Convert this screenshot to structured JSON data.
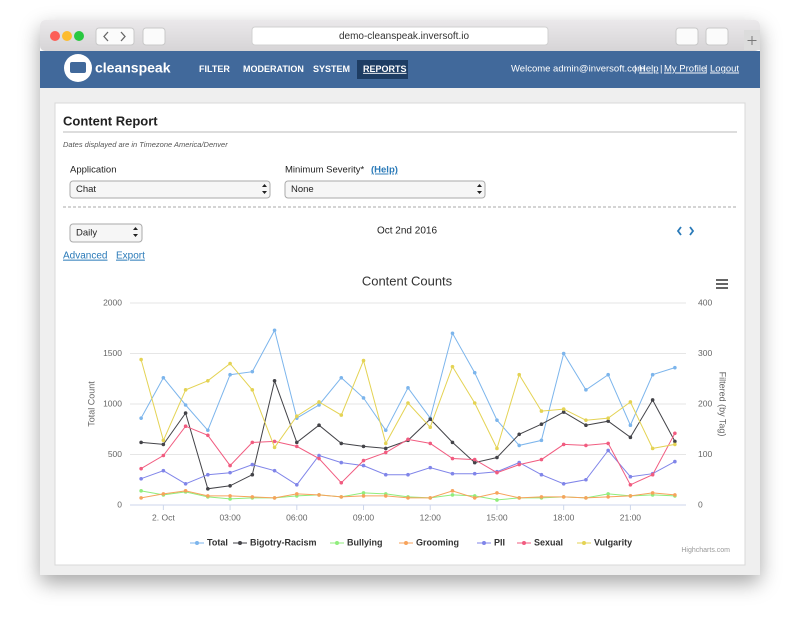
{
  "browser": {
    "url": "demo-cleanspeak.inversoft.io"
  },
  "nav": {
    "logo": "cleanspeak",
    "items": [
      "FILTER",
      "MODERATION",
      "SYSTEM",
      "REPORTS"
    ],
    "welcome": "Welcome admin@inversoft.com",
    "separator": "|",
    "links": [
      "Help",
      "My Profile",
      "Logout"
    ]
  },
  "page": {
    "title": "Content Report",
    "note": "Dates displayed are in Timezone America/Denver",
    "application_label": "Application",
    "application_value": "Chat",
    "severity_label": "Minimum Severity*",
    "severity_help": "(Help)",
    "severity_value": "None",
    "interval": "Daily",
    "date": "Oct 2nd 2016",
    "links": [
      "Advanced",
      "Export"
    ]
  },
  "chart_data": {
    "type": "line",
    "title": "Content Counts",
    "y_label": "Total Count",
    "y2_label": "Filtered (by Tag)",
    "credit": "Highcharts.com",
    "grid": true,
    "categories": [
      null,
      "2. Oct",
      null,
      null,
      "03:00",
      null,
      null,
      "06:00",
      null,
      null,
      "09:00",
      null,
      null,
      "12:00",
      null,
      null,
      "15:00",
      null,
      null,
      "18:00",
      null,
      null,
      "21:00",
      null,
      null
    ],
    "ylim": [
      0,
      2000
    ],
    "yticks": [
      0,
      500,
      1000,
      1500,
      2000
    ],
    "y2lim": [
      0,
      400
    ],
    "y2ticks": [
      0,
      100,
      200,
      300,
      400
    ],
    "series": [
      {
        "name": "Total",
        "color": "#7cb5ec",
        "values": [
          860,
          1260,
          990,
          740,
          1290,
          1320,
          1730,
          860,
          990,
          1260,
          1060,
          740,
          1160,
          860,
          1700,
          1310,
          840,
          590,
          640,
          1500,
          1140,
          1290,
          790,
          1290,
          1360
        ]
      },
      {
        "name": "Bigotry-Racism",
        "color": "#434348",
        "axis": "y2",
        "values": [
          124,
          120,
          182,
          32,
          38,
          60,
          246,
          124,
          158,
          122,
          116,
          112,
          128,
          170,
          124,
          84,
          94,
          140,
          160,
          184,
          158,
          166,
          134,
          208,
          126
        ]
      },
      {
        "name": "Bullying",
        "color": "#90ed7d",
        "axis": "y2",
        "values": [
          28,
          20,
          26,
          16,
          12,
          14,
          14,
          18,
          20,
          16,
          24,
          22,
          16,
          14,
          20,
          18,
          10,
          14,
          14,
          16,
          14,
          22,
          18,
          20,
          18
        ]
      },
      {
        "name": "Grooming",
        "color": "#f7a35c",
        "axis": "y2",
        "values": [
          14,
          22,
          28,
          18,
          18,
          16,
          14,
          22,
          20,
          16,
          18,
          18,
          14,
          14,
          28,
          14,
          24,
          14,
          16,
          16,
          14,
          16,
          18,
          24,
          20
        ]
      },
      {
        "name": "PII",
        "color": "#8085e9",
        "axis": "y2",
        "values": [
          52,
          68,
          42,
          60,
          64,
          80,
          68,
          40,
          98,
          84,
          78,
          60,
          60,
          74,
          62,
          62,
          66,
          84,
          60,
          42,
          50,
          108,
          56,
          62,
          86
        ]
      },
      {
        "name": "Sexual",
        "color": "#f15c80",
        "axis": "y2",
        "values": [
          72,
          98,
          156,
          138,
          78,
          124,
          126,
          116,
          92,
          44,
          88,
          104,
          130,
          122,
          92,
          90,
          64,
          80,
          90,
          120,
          118,
          122,
          40,
          60,
          142
        ]
      },
      {
        "name": "Vulgarity",
        "color": "#e4d354",
        "axis": "y2",
        "values": [
          288,
          128,
          228,
          246,
          280,
          228,
          114,
          176,
          204,
          178,
          286,
          122,
          202,
          154,
          274,
          202,
          112,
          258,
          186,
          190,
          168,
          172,
          204,
          112,
          120
        ]
      }
    ]
  }
}
